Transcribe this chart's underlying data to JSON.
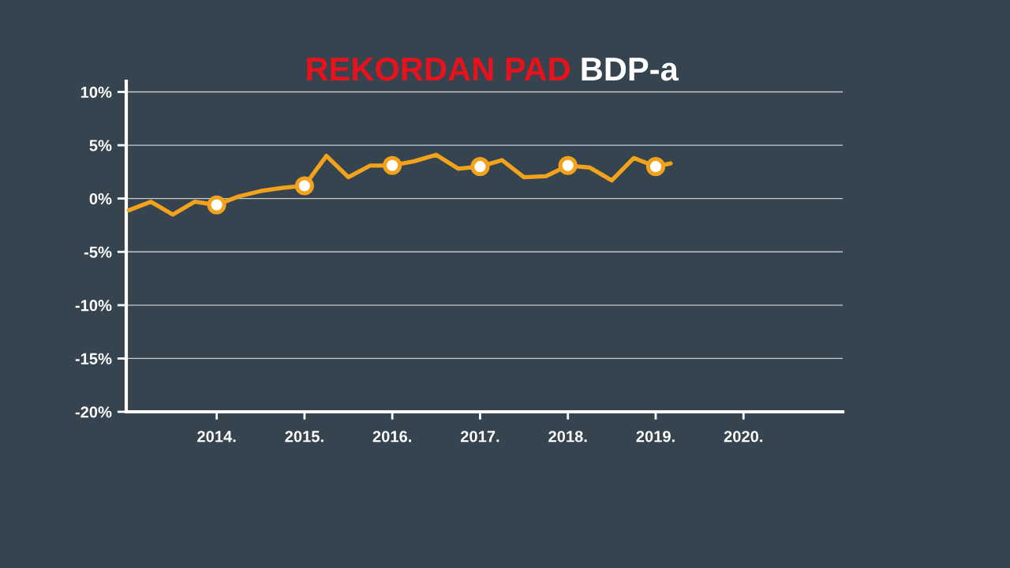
{
  "chart_data": {
    "type": "line",
    "title": "REKORDAN PAD BDP-a",
    "xlim": [
      2012.97,
      2021.13
    ],
    "xticks": [
      {
        "value": 2014,
        "label": "2014."
      },
      {
        "value": 2015,
        "label": "2015."
      },
      {
        "value": 2016,
        "label": "2016."
      },
      {
        "value": 2017,
        "label": "2017."
      },
      {
        "value": 2018,
        "label": "2018."
      },
      {
        "value": 2019,
        "label": "2019."
      },
      {
        "value": 2020,
        "label": "2020."
      }
    ],
    "ylim": [
      -20,
      11
    ],
    "yticks": [
      {
        "value": -20,
        "label": "-20%"
      },
      {
        "value": -15,
        "label": "-15%"
      },
      {
        "value": -10,
        "label": "-10%"
      },
      {
        "value": -5,
        "label": "-5%"
      },
      {
        "value": 0,
        "label": "0%"
      },
      {
        "value": 5,
        "label": "5%"
      },
      {
        "value": 10,
        "label": "10%"
      }
    ],
    "grid": "y",
    "series": [
      {
        "color": "#f2a31b",
        "line_style": "solid",
        "x": [
          2013.0,
          2013.25,
          2013.5,
          2013.75,
          2014.0,
          2014.25,
          2014.5,
          2014.75,
          2015.0,
          2015.25,
          2015.5,
          2015.75,
          2016.0,
          2016.25,
          2016.5,
          2016.75,
          2017.0,
          2017.25,
          2017.5,
          2017.75,
          2018.0,
          2018.25,
          2018.5,
          2018.75,
          2019.0,
          2019.17
        ],
        "values": [
          -1.1,
          -0.3,
          -1.5,
          -0.3,
          -0.6,
          0.2,
          0.7,
          1.0,
          1.2,
          4.0,
          2.0,
          3.1,
          3.1,
          3.5,
          4.1,
          2.8,
          3.0,
          3.6,
          2.0,
          2.1,
          3.1,
          2.9,
          1.7,
          3.8,
          3.0,
          3.3
        ]
      },
      {
        "type": "scatter",
        "color": "#f2a31b",
        "marker": "circle",
        "x": [
          2014.0,
          2015.0,
          2016.0,
          2017.0,
          2018.0,
          2019.0
        ],
        "values": [
          -0.6,
          1.2,
          3.1,
          3.0,
          3.1,
          3.0
        ]
      }
    ]
  }
}
